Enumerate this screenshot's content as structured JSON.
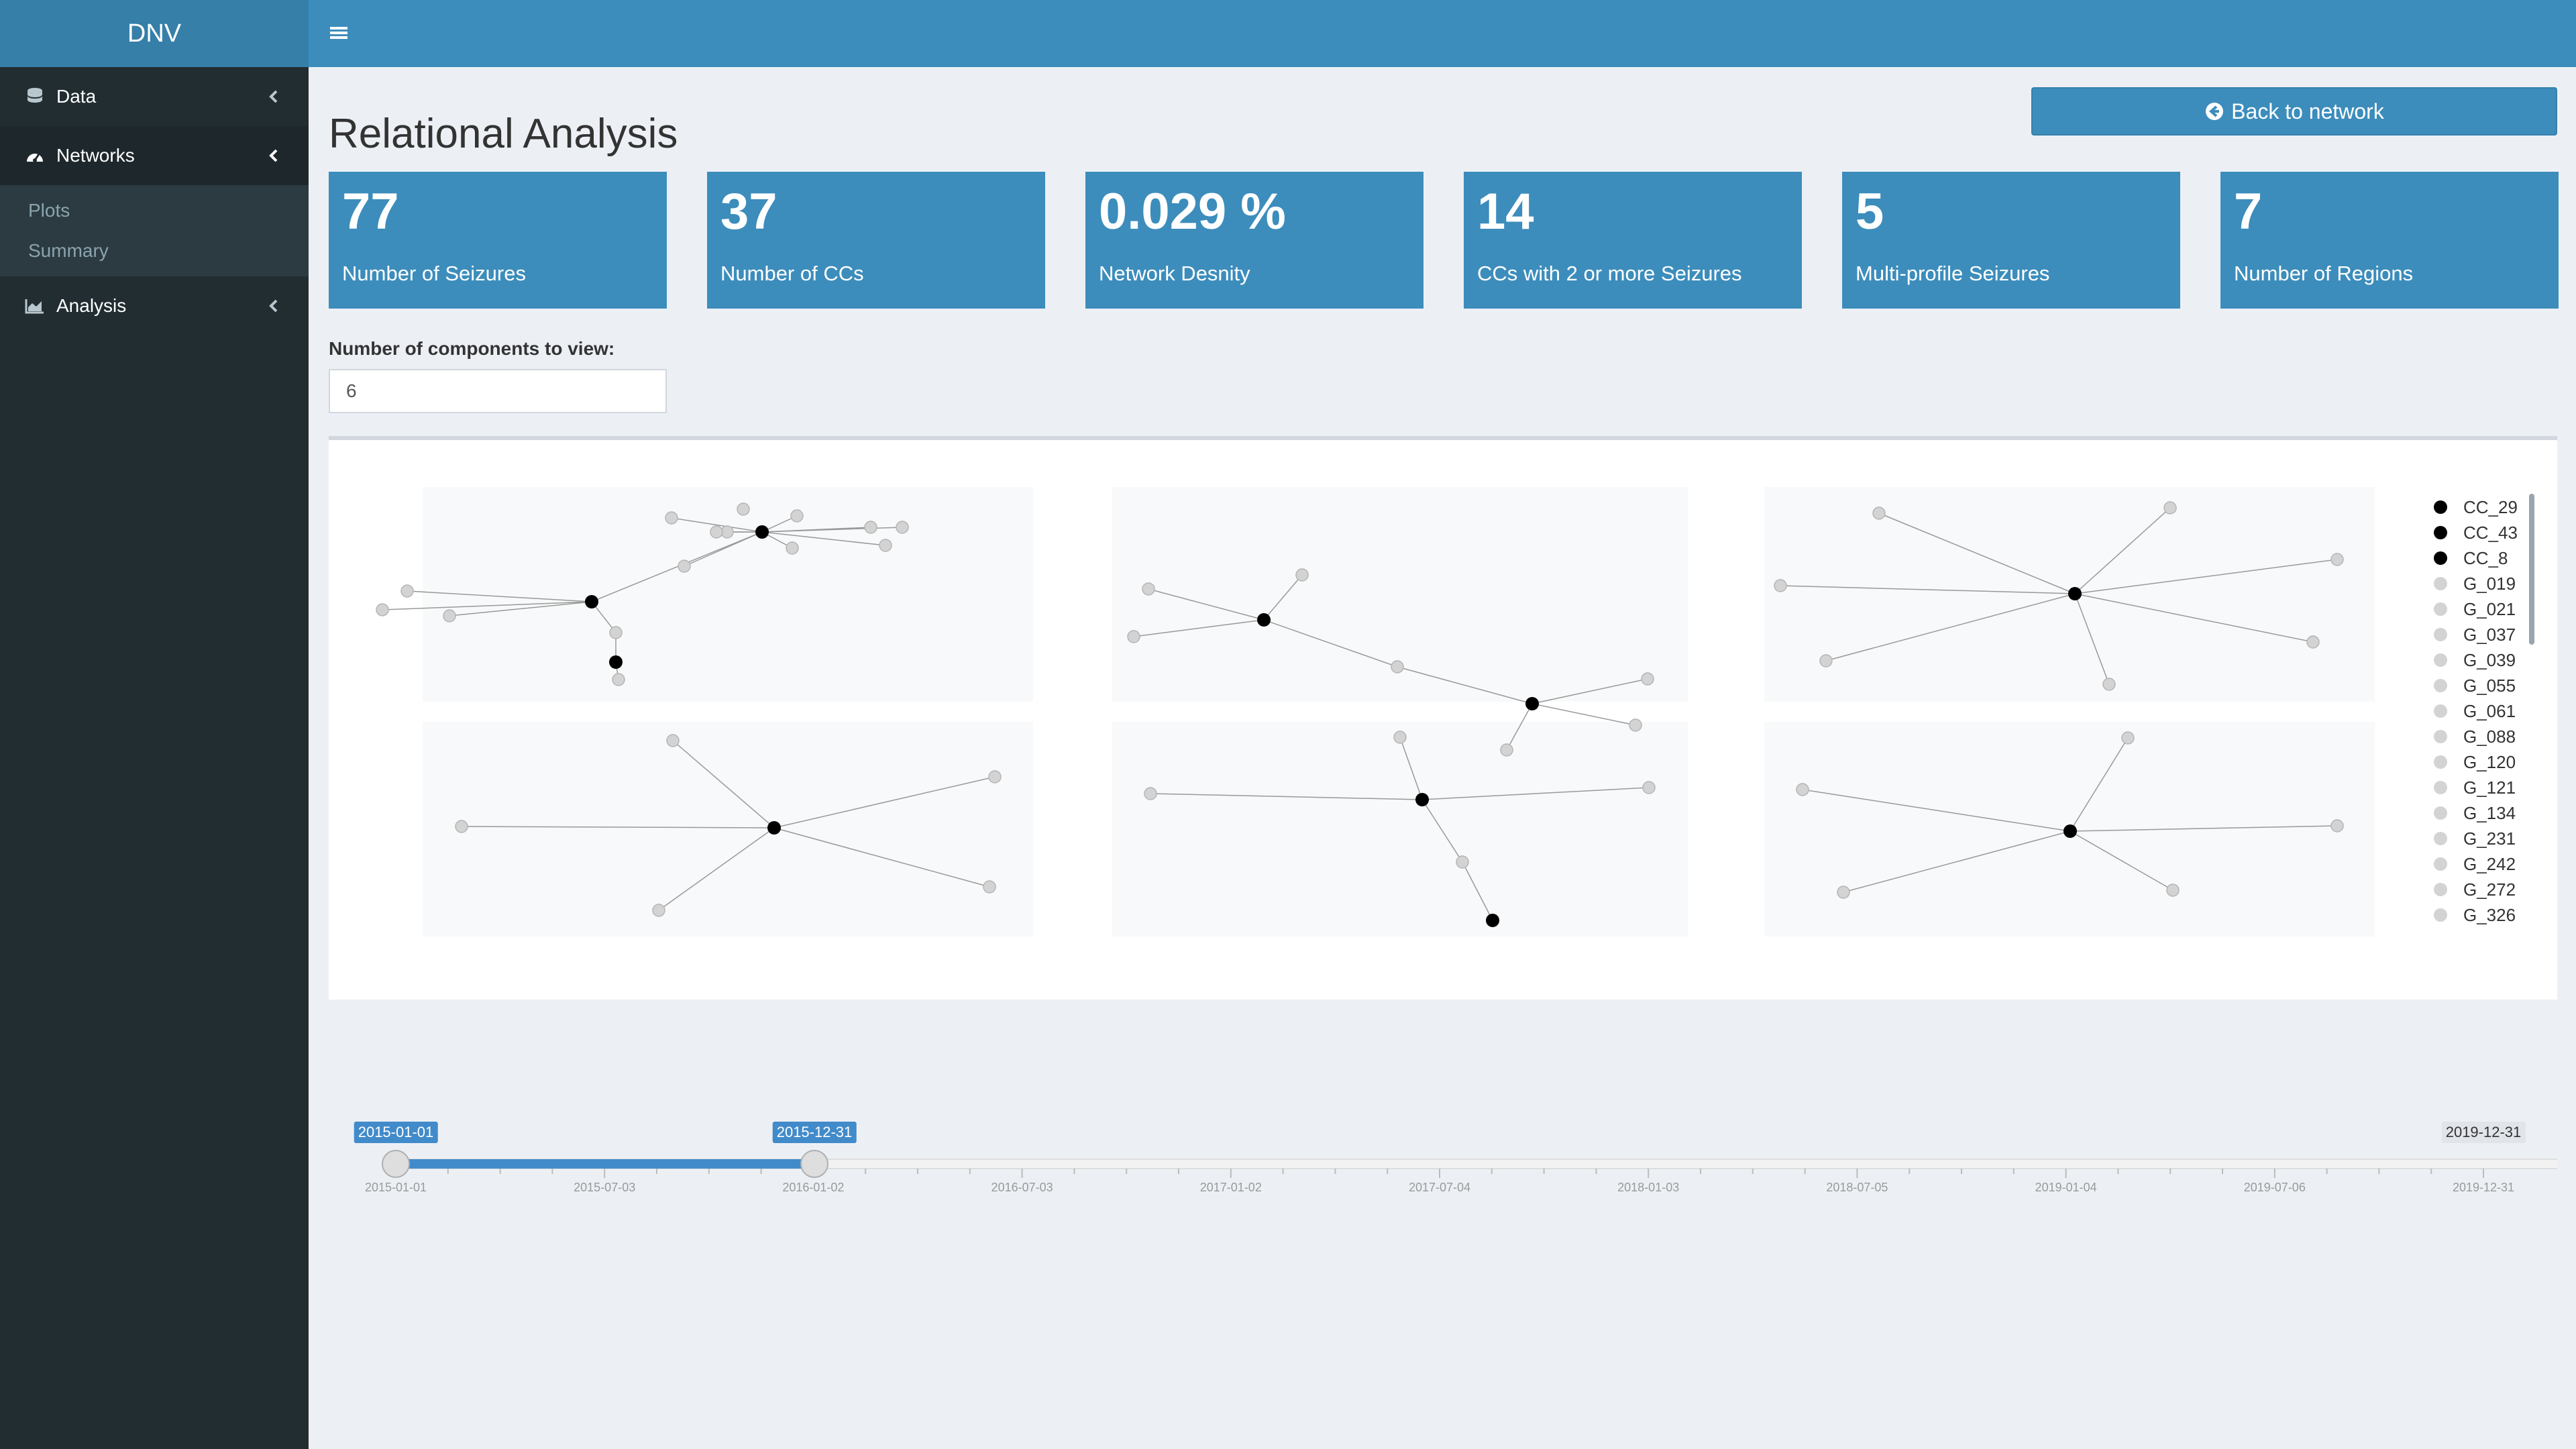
{
  "app": {
    "logo": "DNV"
  },
  "sidebar": {
    "items": [
      {
        "label": "Data",
        "icon": "database-icon"
      },
      {
        "label": "Networks",
        "icon": "dashboard-icon"
      },
      {
        "label": "Analysis",
        "icon": "area-chart-icon"
      }
    ],
    "submenu": [
      "Plots",
      "Summary"
    ]
  },
  "header": {
    "menu_icon": "hamburger-icon"
  },
  "page": {
    "title": "Relational Analysis",
    "back_button": "Back to network"
  },
  "value_boxes": [
    {
      "value": "77",
      "label": "Number of Seizures"
    },
    {
      "value": "37",
      "label": "Number of CCs"
    },
    {
      "value": "0.029 %",
      "label": "Network Desnity"
    },
    {
      "value": "14",
      "label": "CCs with 2 or more Seizures"
    },
    {
      "value": "5",
      "label": "Multi-profile Seizures"
    },
    {
      "value": "7",
      "label": "Number of Regions"
    }
  ],
  "components": {
    "label": "Number of components to view:",
    "value": "6"
  },
  "legend": {
    "items": [
      {
        "name": "CC_29",
        "color": "#000000"
      },
      {
        "name": "CC_43",
        "color": "#000000"
      },
      {
        "name": "CC_8",
        "color": "#000000"
      },
      {
        "name": "G_019",
        "color": "#d3d3d3"
      },
      {
        "name": "G_021",
        "color": "#d3d3d3"
      },
      {
        "name": "G_037",
        "color": "#d3d3d3"
      },
      {
        "name": "G_039",
        "color": "#d3d3d3"
      },
      {
        "name": "G_055",
        "color": "#d3d3d3"
      },
      {
        "name": "G_061",
        "color": "#d3d3d3"
      },
      {
        "name": "G_088",
        "color": "#d3d3d3"
      },
      {
        "name": "G_120",
        "color": "#d3d3d3"
      },
      {
        "name": "G_121",
        "color": "#d3d3d3"
      },
      {
        "name": "G_134",
        "color": "#d3d3d3"
      },
      {
        "name": "G_231",
        "color": "#d3d3d3"
      },
      {
        "name": "G_242",
        "color": "#d3d3d3"
      },
      {
        "name": "G_272",
        "color": "#d3d3d3"
      },
      {
        "name": "G_326",
        "color": "#d3d3d3"
      }
    ]
  },
  "slider": {
    "from": "2015-01-01",
    "to": "2015-12-31",
    "max": "2019-12-31",
    "ticks": [
      "2015-01-01",
      "2015-07-03",
      "2016-01-02",
      "2016-07-03",
      "2017-01-02",
      "2017-07-04",
      "2018-01-03",
      "2018-07-05",
      "2019-01-04",
      "2019-07-06",
      "2019-12-31"
    ]
  },
  "colors": {
    "primary": "#3c8dbc",
    "sidebar": "#222d32",
    "hub_node": "#000000",
    "leaf_node": "#d3d3d3"
  }
}
